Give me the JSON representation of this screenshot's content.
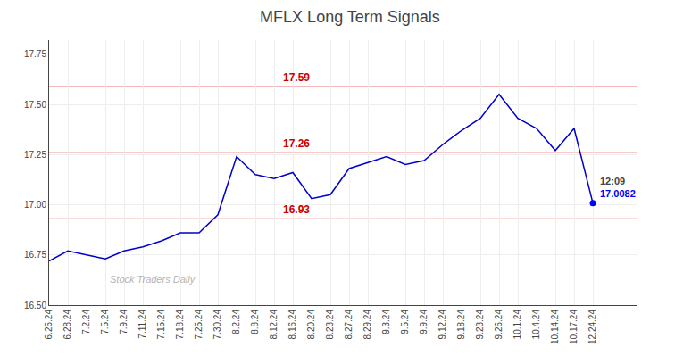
{
  "chart_data": {
    "type": "line",
    "title": "MFLX Long Term Signals",
    "categories": [
      "6.26.24",
      "6.28.24",
      "7.2.24",
      "7.5.24",
      "7.9.24",
      "7.11.24",
      "7.15.24",
      "7.18.24",
      "7.25.24",
      "7.30.24",
      "8.2.24",
      "8.8.24",
      "8.12.24",
      "8.16.24",
      "8.20.24",
      "8.23.24",
      "8.27.24",
      "8.29.24",
      "9.3.24",
      "9.5.24",
      "9.9.24",
      "9.12.24",
      "9.18.24",
      "9.23.24",
      "9.26.24",
      "10.1.24",
      "10.4.24",
      "10.14.24",
      "10.17.24",
      "12.24.24"
    ],
    "values": [
      16.72,
      16.77,
      16.75,
      16.73,
      16.77,
      16.79,
      16.82,
      16.86,
      16.86,
      16.95,
      17.24,
      17.15,
      17.13,
      17.16,
      17.03,
      17.05,
      17.18,
      17.21,
      17.24,
      17.2,
      17.22,
      17.3,
      17.37,
      17.43,
      17.55,
      17.43,
      17.38,
      17.27,
      17.38,
      17.0082
    ],
    "color": "#0000cc",
    "hlines": [
      {
        "value": 17.59,
        "label": "17.59"
      },
      {
        "value": 17.26,
        "label": "17.26"
      },
      {
        "value": 16.93,
        "label": "16.93"
      }
    ],
    "hline_color": "#f4b8b8",
    "hline_label_color": "#cc0000",
    "last_point": {
      "x": "12.24.24",
      "y": 17.0082,
      "time": "12:09",
      "label": "17.0082",
      "color": "blue"
    },
    "watermark": "Stock Traders Daily",
    "ylim": [
      16.5,
      17.82
    ],
    "yticks": [
      {
        "value": 16.5,
        "label": "16.50"
      },
      16.75,
      {
        "value": 17.0,
        "label": "17.00"
      },
      17.25,
      {
        "value": 17.5,
        "label": "17.50"
      },
      17.75
    ],
    "grid": true
  }
}
